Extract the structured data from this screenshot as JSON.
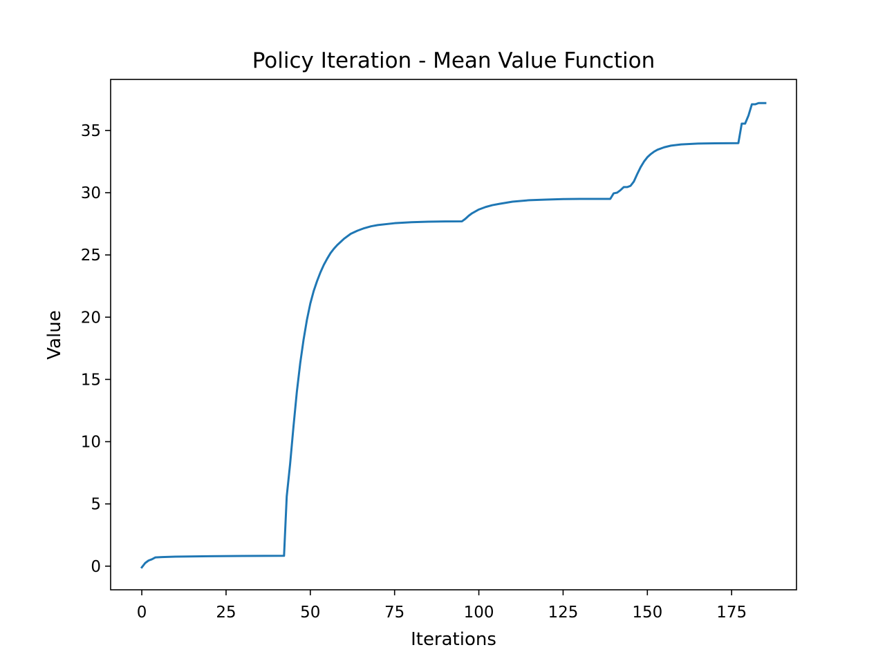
{
  "chart_data": {
    "type": "line",
    "title": "Policy Iteration - Mean Value Function",
    "xlabel": "Iterations",
    "ylabel": "Value",
    "xlim": [
      -9.25,
      194.25
    ],
    "ylim": [
      -1.9,
      39.1
    ],
    "xticks": [
      0,
      25,
      50,
      75,
      100,
      125,
      150,
      175
    ],
    "yticks": [
      0,
      5,
      10,
      15,
      20,
      25,
      30,
      35
    ],
    "grid": false,
    "legend": "none",
    "series": [
      {
        "color": "#1f77b4",
        "points": [
          [
            0,
            -0.1
          ],
          [
            1,
            0.25
          ],
          [
            2,
            0.45
          ],
          [
            3,
            0.55
          ],
          [
            4,
            0.7
          ],
          [
            6,
            0.73
          ],
          [
            10,
            0.76
          ],
          [
            20,
            0.8
          ],
          [
            30,
            0.82
          ],
          [
            42,
            0.83
          ],
          [
            42.2,
            0.83
          ],
          [
            43,
            5.6
          ],
          [
            44,
            8.2
          ],
          [
            45,
            11.2
          ],
          [
            46,
            14.0
          ],
          [
            47,
            16.3
          ],
          [
            48,
            18.2
          ],
          [
            49,
            19.8
          ],
          [
            50,
            21.1
          ],
          [
            51,
            22.1
          ],
          [
            52,
            22.9
          ],
          [
            53,
            23.6
          ],
          [
            54,
            24.2
          ],
          [
            55,
            24.7
          ],
          [
            56,
            25.15
          ],
          [
            57,
            25.5
          ],
          [
            58,
            25.8
          ],
          [
            59,
            26.05
          ],
          [
            60,
            26.3
          ],
          [
            62,
            26.7
          ],
          [
            64,
            26.95
          ],
          [
            66,
            27.15
          ],
          [
            68,
            27.3
          ],
          [
            70,
            27.4
          ],
          [
            75,
            27.55
          ],
          [
            80,
            27.63
          ],
          [
            85,
            27.67
          ],
          [
            90,
            27.69
          ],
          [
            95,
            27.7
          ],
          [
            96,
            27.9
          ],
          [
            97,
            28.15
          ],
          [
            98,
            28.35
          ],
          [
            100,
            28.65
          ],
          [
            102,
            28.85
          ],
          [
            104,
            29.0
          ],
          [
            106,
            29.1
          ],
          [
            110,
            29.28
          ],
          [
            115,
            29.4
          ],
          [
            120,
            29.45
          ],
          [
            125,
            29.49
          ],
          [
            130,
            29.5
          ],
          [
            135,
            29.5
          ],
          [
            139,
            29.5
          ],
          [
            140,
            29.95
          ],
          [
            141,
            30.0
          ],
          [
            142,
            30.2
          ],
          [
            143,
            30.45
          ],
          [
            144,
            30.45
          ],
          [
            145,
            30.55
          ],
          [
            146,
            30.9
          ],
          [
            147,
            31.5
          ],
          [
            148,
            32.05
          ],
          [
            149,
            32.5
          ],
          [
            150,
            32.85
          ],
          [
            151,
            33.1
          ],
          [
            152,
            33.3
          ],
          [
            153,
            33.45
          ],
          [
            155,
            33.65
          ],
          [
            157,
            33.78
          ],
          [
            160,
            33.88
          ],
          [
            165,
            33.95
          ],
          [
            170,
            33.97
          ],
          [
            177,
            33.98
          ],
          [
            178,
            35.55
          ],
          [
            179,
            35.55
          ],
          [
            180,
            36.2
          ],
          [
            181,
            37.1
          ],
          [
            182,
            37.1
          ],
          [
            183,
            37.2
          ],
          [
            185,
            37.2
          ]
        ]
      }
    ]
  }
}
